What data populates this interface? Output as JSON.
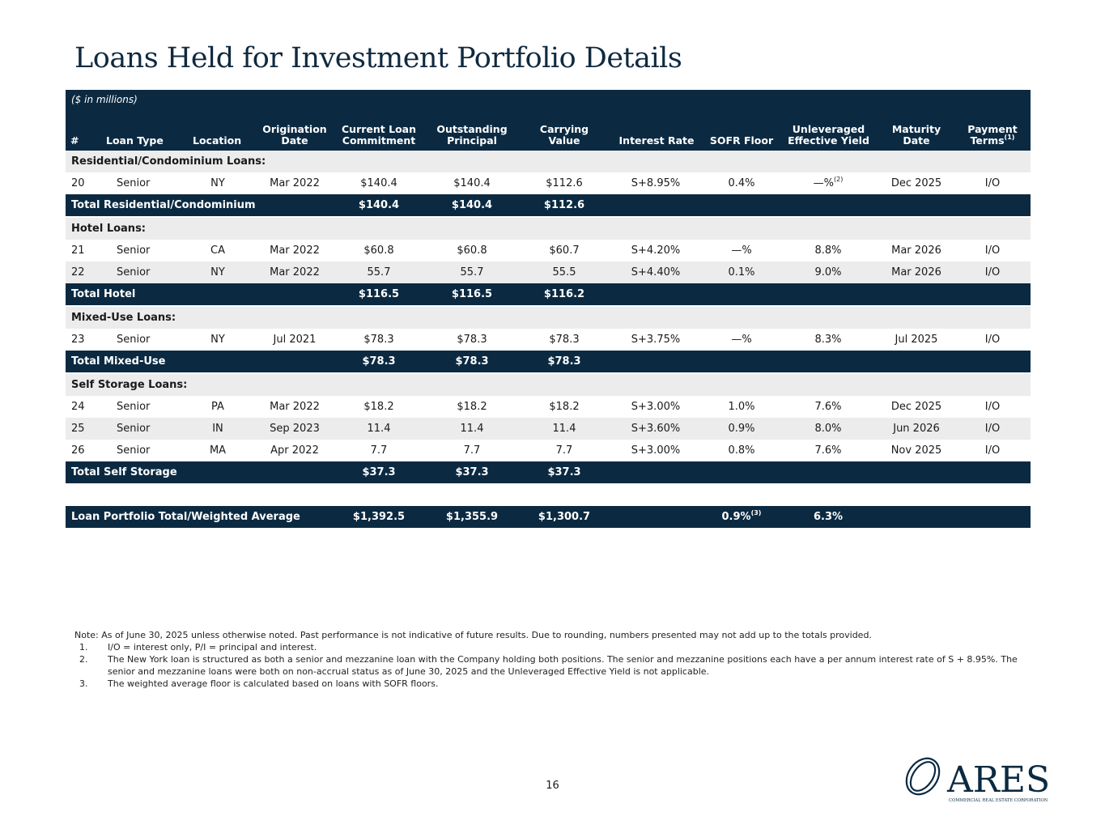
{
  "title": "Loans Held for Investment Portfolio Details",
  "units": "($ in millions)",
  "columns": {
    "num": "#",
    "loan_type": "Loan Type",
    "location": "Location",
    "orig1": "Origination",
    "orig2": "Date",
    "commit1": "Current Loan",
    "commit2": "Commitment",
    "out1": "Outstanding",
    "out2": "Principal",
    "carry1": "Carrying",
    "carry2": "Value",
    "rate": "Interest Rate",
    "floor": "SOFR Floor",
    "yield1": "Unleveraged",
    "yield2": "Effective Yield",
    "mat1": "Maturity",
    "mat2": "Date",
    "pay1": "Payment",
    "pay2": "Terms",
    "pay_note": "(1)"
  },
  "sections": [
    {
      "label": "Residential/Condominium Loans:",
      "rows": [
        {
          "num": "20",
          "type": "Senior",
          "loc": "NY",
          "orig": "Mar 2022",
          "commit": "$140.4",
          "out": "$140.4",
          "carry": "$112.6",
          "rate": "S+8.95%",
          "floor": "0.4%",
          "yield": "—%",
          "yield_note": "(2)",
          "mat": "Dec 2025",
          "pay": "I/O"
        }
      ],
      "total": {
        "label": "Total Residential/Condominium",
        "commit": "$140.4",
        "out": "$140.4",
        "carry": "$112.6"
      }
    },
    {
      "label": "Hotel Loans:",
      "rows": [
        {
          "num": "21",
          "type": "Senior",
          "loc": "CA",
          "orig": "Mar 2022",
          "commit": "$60.8",
          "out": "$60.8",
          "carry": "$60.7",
          "rate": "S+4.20%",
          "floor": "—%",
          "yield": "8.8%",
          "mat": "Mar 2026",
          "pay": "I/O"
        },
        {
          "num": "22",
          "type": "Senior",
          "loc": "NY",
          "orig": "Mar 2022",
          "commit": "55.7",
          "out": "55.7",
          "carry": "55.5",
          "rate": "S+4.40%",
          "floor": "0.1%",
          "yield": "9.0%",
          "mat": "Mar 2026",
          "pay": "I/O"
        }
      ],
      "total": {
        "label": "Total Hotel",
        "commit": "$116.5",
        "out": "$116.5",
        "carry": "$116.2"
      }
    },
    {
      "label": "Mixed-Use Loans:",
      "rows": [
        {
          "num": "23",
          "type": "Senior",
          "loc": "NY",
          "orig": "Jul 2021",
          "commit": "$78.3",
          "out": "$78.3",
          "carry": "$78.3",
          "rate": "S+3.75%",
          "floor": "—%",
          "yield": "8.3%",
          "mat": "Jul 2025",
          "pay": "I/O"
        }
      ],
      "total": {
        "label": "Total Mixed-Use",
        "commit": "$78.3",
        "out": "$78.3",
        "carry": "$78.3"
      }
    },
    {
      "label": "Self Storage Loans:",
      "rows": [
        {
          "num": "24",
          "type": "Senior",
          "loc": "PA",
          "orig": "Mar 2022",
          "commit": "$18.2",
          "out": "$18.2",
          "carry": "$18.2",
          "rate": "S+3.00%",
          "floor": "1.0%",
          "yield": "7.6%",
          "mat": "Dec 2025",
          "pay": "I/O"
        },
        {
          "num": "25",
          "type": "Senior",
          "loc": "IN",
          "orig": "Sep 2023",
          "commit": "11.4",
          "out": "11.4",
          "carry": "11.4",
          "rate": "S+3.60%",
          "floor": "0.9%",
          "yield": "8.0%",
          "mat": "Jun 2026",
          "pay": "I/O"
        },
        {
          "num": "26",
          "type": "Senior",
          "loc": "MA",
          "orig": "Apr 2022",
          "commit": "7.7",
          "out": "7.7",
          "carry": "7.7",
          "rate": "S+3.00%",
          "floor": "0.8%",
          "yield": "7.6%",
          "mat": "Nov 2025",
          "pay": "I/O"
        }
      ],
      "total": {
        "label": "Total Self Storage",
        "commit": "$37.3",
        "out": "$37.3",
        "carry": "$37.3"
      }
    }
  ],
  "grand_total": {
    "label": "Loan Portfolio Total/Weighted Average",
    "commit": "$1,392.5",
    "out": "$1,355.9",
    "carry": "$1,300.7",
    "floor": "0.9%",
    "floor_note": "(3)",
    "yield": "6.3%"
  },
  "notes": {
    "intro": "Note: As of June 30, 2025 unless otherwise noted. Past performance is not indicative of future results. Due to rounding, numbers presented may not add up to the totals provided.",
    "items": [
      {
        "num": "1.",
        "text": "I/O = interest only, P/I = principal and interest."
      },
      {
        "num": "2.",
        "text": "The New York loan is structured as both a senior and mezzanine loan with the Company holding both positions. The senior and mezzanine positions each have a per annum interest rate of S + 8.95%. The senior and mezzanine loans were both on non-accrual status as of June 30, 2025 and the Unleveraged Effective Yield is not applicable."
      },
      {
        "num": "3.",
        "text": "The weighted average floor is calculated based on loans with SOFR floors."
      }
    ]
  },
  "page_number": "16",
  "logo": {
    "wordmark": "ARES",
    "tagline": "COMMERCIAL REAL ESTATE CORPORATION",
    "color": "#0b2a42"
  },
  "colors": {
    "header": "#0b2a42",
    "band": "#ececec"
  }
}
